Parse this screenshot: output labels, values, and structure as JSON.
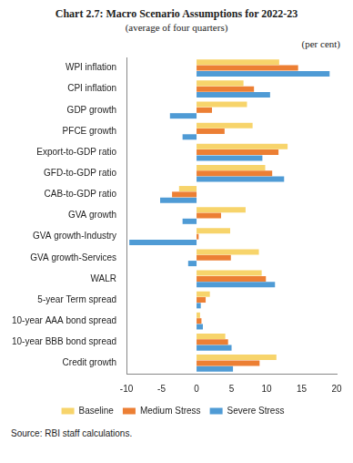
{
  "chart_data": {
    "type": "bar",
    "orientation": "horizontal",
    "title": "Chart 2.7: Macro Scenario Assumptions for 2022-23",
    "subtitle": "(average of four quarters)",
    "annotations": [
      "(per cent)"
    ],
    "source": "Source: RBI staff calculations.",
    "categories": [
      "WPI inflation",
      "CPI inflation",
      "GDP growth",
      "PFCE growth",
      "Export-to-GDP ratio",
      "GFD-to-GDP ratio",
      "CAB-to-GDP ratio",
      "GVA growth",
      "GVA growth-Industry",
      "GVA growth-Services",
      "WALR",
      "5-year Term spread",
      "10-year AAA bond spread",
      "10-year BBB bond spread",
      "Credit growth"
    ],
    "series": [
      {
        "name": "Baseline",
        "color": "#f7d46b",
        "values": [
          11.8,
          6.7,
          7.2,
          8.0,
          13.0,
          9.8,
          -2.5,
          7.0,
          4.8,
          8.9,
          9.3,
          1.9,
          0.5,
          4.1,
          11.4
        ]
      },
      {
        "name": "Medium Stress",
        "color": "#ec7f34",
        "values": [
          14.5,
          8.2,
          2.2,
          4.0,
          11.7,
          10.8,
          -3.5,
          3.5,
          0.3,
          4.9,
          9.9,
          1.3,
          0.7,
          4.5,
          9.0
        ]
      },
      {
        "name": "Severe Stress",
        "color": "#4f9bd5",
        "values": [
          19.0,
          10.5,
          -3.8,
          -2.0,
          9.4,
          12.5,
          -5.2,
          -2.0,
          -9.6,
          -1.2,
          11.2,
          0.6,
          0.9,
          5.0,
          5.2
        ]
      }
    ],
    "xlim": [
      -10,
      20
    ],
    "xticks": [
      -10,
      -5,
      0,
      5,
      10,
      15,
      20
    ],
    "grid": false,
    "legend": "bottom"
  }
}
